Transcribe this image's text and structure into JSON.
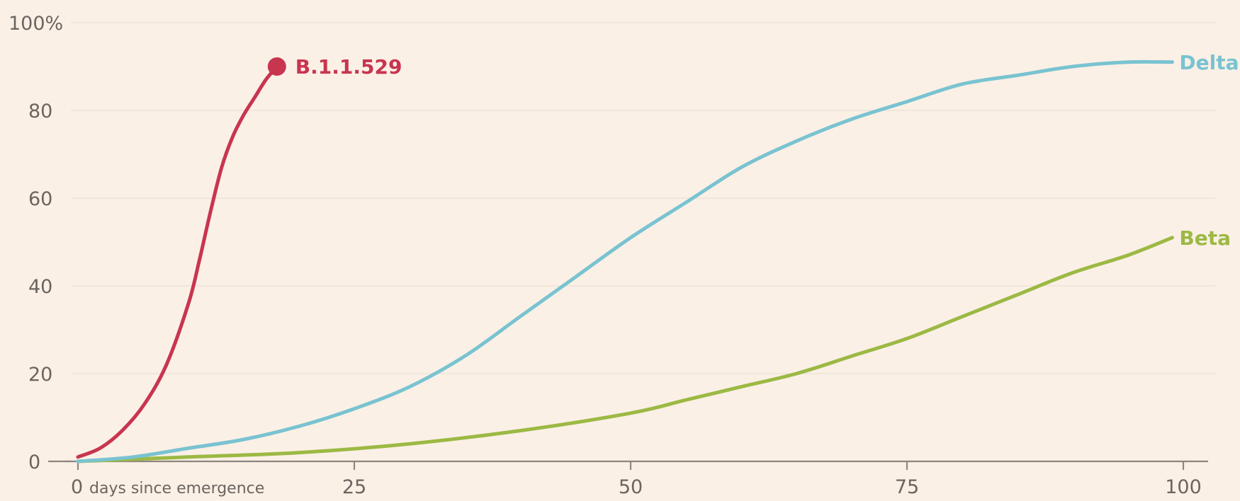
{
  "chart_data": {
    "type": "line",
    "title": "",
    "xlabel": "",
    "ylabel": "",
    "xlim": [
      0,
      100
    ],
    "ylim": [
      0,
      100
    ],
    "grid": true,
    "x_ticks": [
      {
        "value": 0,
        "label": "0",
        "unit_label": "days since emergence"
      },
      {
        "value": 25,
        "label": "25"
      },
      {
        "value": 50,
        "label": "50"
      },
      {
        "value": 75,
        "label": "75"
      },
      {
        "value": 100,
        "label": "100"
      }
    ],
    "y_ticks": [
      {
        "value": 0,
        "label": "0"
      },
      {
        "value": 20,
        "label": "20"
      },
      {
        "value": 40,
        "label": "40"
      },
      {
        "value": 60,
        "label": "60"
      },
      {
        "value": 80,
        "label": "80"
      },
      {
        "value": 100,
        "label": "100%"
      }
    ],
    "series": [
      {
        "name": "B.1.1.529",
        "color": "#c8354f",
        "end_marker": true,
        "x": [
          0,
          2,
          4,
          6,
          8,
          10,
          11,
          12,
          13,
          14,
          15,
          16,
          17,
          18
        ],
        "y": [
          1,
          3,
          7,
          13,
          22,
          36,
          46,
          57,
          67,
          74,
          79,
          83,
          87,
          90
        ]
      },
      {
        "name": "Delta",
        "color": "#79c3d1",
        "end_marker": false,
        "x": [
          0,
          5,
          10,
          15,
          20,
          25,
          30,
          35,
          40,
          45,
          50,
          55,
          60,
          65,
          70,
          75,
          80,
          85,
          90,
          95,
          99
        ],
        "y": [
          0,
          1,
          3,
          5,
          8,
          12,
          17,
          24,
          33,
          42,
          51,
          59,
          67,
          73,
          78,
          82,
          86,
          88,
          90,
          91,
          91
        ]
      },
      {
        "name": "Beta",
        "color": "#9cb944",
        "end_marker": false,
        "x": [
          0,
          10,
          20,
          30,
          40,
          50,
          55,
          60,
          65,
          70,
          75,
          80,
          85,
          90,
          95,
          99
        ],
        "y": [
          0,
          1,
          2,
          4,
          7,
          11,
          14,
          17,
          20,
          24,
          28,
          33,
          38,
          43,
          47,
          51
        ]
      }
    ]
  }
}
